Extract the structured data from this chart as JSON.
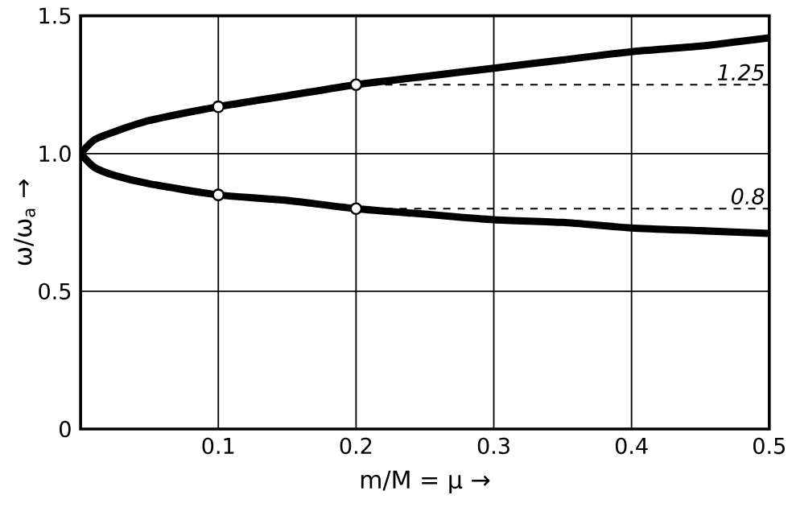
{
  "chart_data": {
    "type": "line",
    "xlabel": "m/M = μ →",
    "ylabel": "ω/ω$_{a}$ →",
    "xlim": [
      0,
      0.5
    ],
    "ylim": [
      0,
      1.5
    ],
    "xticks": [
      0.1,
      0.2,
      0.3,
      0.4,
      0.5
    ],
    "yticks": [
      0,
      0.5,
      {
        "value": 1,
        "label": "1.0"
      },
      1.5
    ],
    "grid": true,
    "series": [
      {
        "type": "line",
        "color": "#000000",
        "marker": "none",
        "line_style": "solid",
        "x": [
          0,
          0.01,
          0.025,
          0.05,
          0.1,
          0.15,
          0.2,
          0.25,
          0.3,
          0.35,
          0.4,
          0.45,
          0.5
        ],
        "values": [
          1.0,
          1.05,
          1.08,
          1.12,
          1.17,
          1.21,
          1.25,
          1.28,
          1.31,
          1.34,
          1.37,
          1.39,
          1.42
        ]
      },
      {
        "type": "line",
        "color": "#000000",
        "marker": "none",
        "line_style": "solid",
        "x": [
          0,
          0.01,
          0.025,
          0.05,
          0.1,
          0.15,
          0.2,
          0.25,
          0.3,
          0.35,
          0.4,
          0.45,
          0.5
        ],
        "values": [
          1.0,
          0.95,
          0.92,
          0.89,
          0.85,
          0.83,
          0.8,
          0.78,
          0.76,
          0.75,
          0.73,
          0.72,
          0.71
        ]
      },
      {
        "type": "line",
        "color": "#000000",
        "marker": "none",
        "line_style": "dashed",
        "x": [
          0.2,
          0.5
        ],
        "values": [
          1.25,
          1.25
        ]
      },
      {
        "type": "line",
        "color": "#000000",
        "marker": "none",
        "line_style": "dashed",
        "x": [
          0.2,
          0.5
        ],
        "values": [
          0.8,
          0.8
        ]
      },
      {
        "type": "scatter",
        "color": "#000000",
        "marker": "circle",
        "x": [
          0.1,
          0.2,
          0.1,
          0.2
        ],
        "values": [
          1.17,
          1.25,
          0.85,
          0.8
        ]
      }
    ],
    "annotations": [
      {
        "text": "1.25",
        "x": 0.5,
        "y": 1.25
      },
      {
        "text": "0.8",
        "x": 0.5,
        "y": 0.8
      }
    ]
  }
}
